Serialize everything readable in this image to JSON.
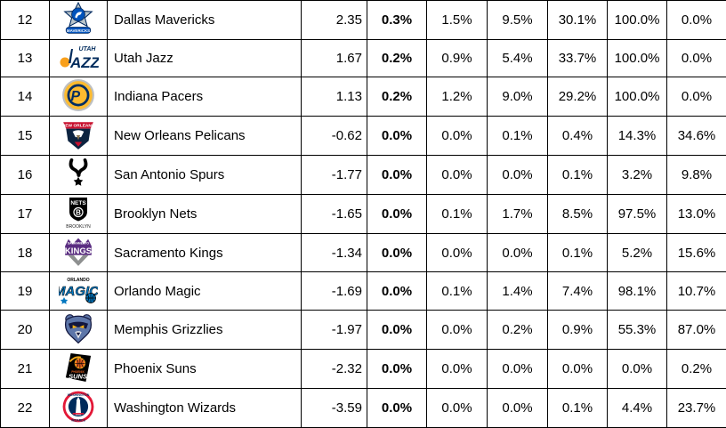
{
  "table": {
    "rows": [
      {
        "rank": "12",
        "team": "Dallas Mavericks",
        "icon": "dallas-mavericks-logo",
        "value": "2.35",
        "pcts": [
          "0.3%",
          "1.5%",
          "9.5%",
          "30.1%",
          "100.0%",
          "0.0%"
        ]
      },
      {
        "rank": "13",
        "team": "Utah Jazz",
        "icon": "utah-jazz-logo",
        "value": "1.67",
        "pcts": [
          "0.2%",
          "0.9%",
          "5.4%",
          "33.7%",
          "100.0%",
          "0.0%"
        ]
      },
      {
        "rank": "14",
        "team": "Indiana Pacers",
        "icon": "indiana-pacers-logo",
        "value": "1.13",
        "pcts": [
          "0.2%",
          "1.2%",
          "9.0%",
          "29.2%",
          "100.0%",
          "0.0%"
        ]
      },
      {
        "rank": "15",
        "team": "New Orleans Pelicans",
        "icon": "new-orleans-pelicans-logo",
        "value": "-0.62",
        "pcts": [
          "0.0%",
          "0.0%",
          "0.1%",
          "0.4%",
          "14.3%",
          "34.6%"
        ]
      },
      {
        "rank": "16",
        "team": "San Antonio Spurs",
        "icon": "san-antonio-spurs-logo",
        "value": "-1.77",
        "pcts": [
          "0.0%",
          "0.0%",
          "0.0%",
          "0.1%",
          "3.2%",
          "9.8%"
        ]
      },
      {
        "rank": "17",
        "team": "Brooklyn Nets",
        "icon": "brooklyn-nets-logo",
        "value": "-1.65",
        "pcts": [
          "0.0%",
          "0.1%",
          "1.7%",
          "8.5%",
          "97.5%",
          "13.0%"
        ]
      },
      {
        "rank": "18",
        "team": "Sacramento Kings",
        "icon": "sacramento-kings-logo",
        "value": "-1.34",
        "pcts": [
          "0.0%",
          "0.0%",
          "0.0%",
          "0.1%",
          "5.2%",
          "15.6%"
        ]
      },
      {
        "rank": "19",
        "team": "Orlando Magic",
        "icon": "orlando-magic-logo",
        "value": "-1.69",
        "pcts": [
          "0.0%",
          "0.1%",
          "1.4%",
          "7.4%",
          "98.1%",
          "10.7%"
        ]
      },
      {
        "rank": "20",
        "team": "Memphis Grizzlies",
        "icon": "memphis-grizzlies-logo",
        "value": "-1.97",
        "pcts": [
          "0.0%",
          "0.0%",
          "0.2%",
          "0.9%",
          "55.3%",
          "87.0%"
        ]
      },
      {
        "rank": "21",
        "team": "Phoenix Suns",
        "icon": "phoenix-suns-logo",
        "value": "-2.32",
        "pcts": [
          "0.0%",
          "0.0%",
          "0.0%",
          "0.0%",
          "0.0%",
          "0.2%"
        ]
      },
      {
        "rank": "22",
        "team": "Washington Wizards",
        "icon": "washington-wizards-logo",
        "value": "-3.59",
        "pcts": [
          "0.0%",
          "0.0%",
          "0.0%",
          "0.1%",
          "4.4%",
          "23.7%"
        ]
      }
    ],
    "team_colors": {
      "dallas_mavericks": [
        "#0053bc",
        "#b8c4ca",
        "#00285e"
      ],
      "utah_jazz": [
        "#002b5c",
        "#f9a01b"
      ],
      "indiana_pacers": [
        "#fdbb30",
        "#002d62"
      ],
      "new_orleans_pelicans": [
        "#0c2340",
        "#c8102e",
        "#85714d"
      ],
      "san_antonio_spurs": [
        "#000000",
        "#c4ced4"
      ],
      "brooklyn_nets": [
        "#000000",
        "#ffffff"
      ],
      "sacramento_kings": [
        "#5a2d81",
        "#8e9090"
      ],
      "orlando_magic": [
        "#0077c0",
        "#000000"
      ],
      "memphis_grizzlies": [
        "#5d76a9",
        "#12173f",
        "#f5b112"
      ],
      "phoenix_suns": [
        "#000000",
        "#e56020",
        "#f9ad1b"
      ],
      "washington_wizards": [
        "#e31837",
        "#002b5c",
        "#ffffff"
      ]
    },
    "border_color": "#000000",
    "background_color": "#ffffff"
  }
}
